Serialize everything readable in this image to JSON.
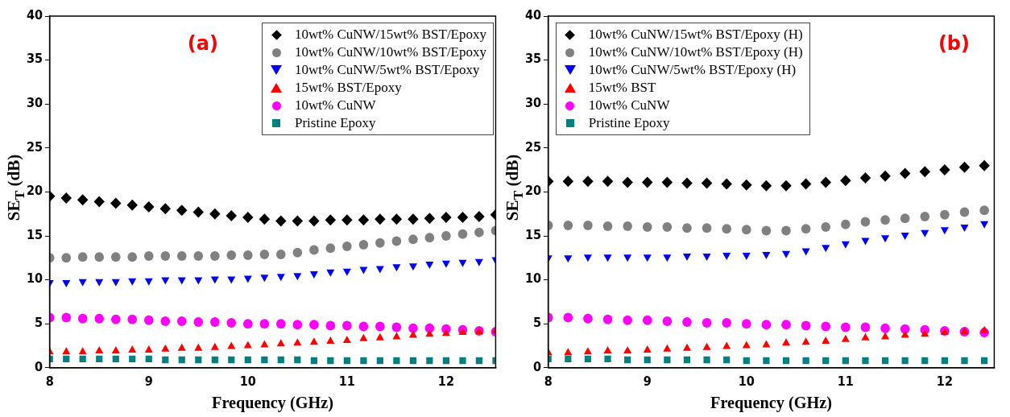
{
  "chart_data": [
    {
      "type": "scatter",
      "xlabel": "Frequency (GHz)",
      "ylabel": "SE$_{T}$ (dB)",
      "annotations": [
        "(a)"
      ],
      "legend": "top right",
      "grid": false,
      "xlim": [
        8,
        12.5
      ],
      "xticks": [
        8,
        9,
        10,
        11,
        12
      ],
      "ylim": [
        0,
        40
      ],
      "yticks": [
        0,
        5,
        10,
        15,
        20,
        25,
        30,
        35,
        40
      ],
      "x": [
        8,
        8.167,
        8.333,
        8.5,
        8.667,
        8.833,
        9,
        9.167,
        9.333,
        9.5,
        9.667,
        9.833,
        10,
        10.167,
        10.333,
        10.5,
        10.667,
        10.833,
        11,
        11.167,
        11.333,
        11.5,
        11.667,
        11.833,
        12,
        12.167,
        12.333,
        12.5
      ],
      "series": [
        {
          "name": "10wt% CuNW/15wt% BST/Epoxy",
          "color": "#000000",
          "marker": "diamond",
          "values": [
            19.5,
            19.3,
            19.1,
            18.9,
            18.7,
            18.5,
            18.3,
            18.1,
            17.9,
            17.7,
            17.5,
            17.3,
            17.1,
            16.9,
            16.7,
            16.7,
            16.7,
            16.8,
            16.8,
            16.8,
            16.9,
            16.9,
            16.9,
            17.0,
            17.1,
            17.1,
            17.2,
            17.4
          ]
        },
        {
          "name": "10wt% CuNW/10wt% BST/Epoxy",
          "color": "#808080",
          "marker": "circle",
          "values": [
            12.5,
            12.5,
            12.6,
            12.6,
            12.6,
            12.6,
            12.7,
            12.7,
            12.7,
            12.7,
            12.7,
            12.8,
            12.8,
            12.9,
            12.9,
            13.1,
            13.4,
            13.6,
            13.8,
            14.0,
            14.2,
            14.4,
            14.6,
            14.8,
            15.0,
            15.2,
            15.4,
            15.6
          ]
        },
        {
          "name": "10wt% CuNW/5wt% BST/Epoxy",
          "color": "#0000ff",
          "marker": "triangle-down",
          "values": [
            9.7,
            9.7,
            9.8,
            9.8,
            9.8,
            9.9,
            9.9,
            10.0,
            10.0,
            10.0,
            10.1,
            10.1,
            10.2,
            10.3,
            10.4,
            10.5,
            10.7,
            10.9,
            11.0,
            11.2,
            11.3,
            11.5,
            11.6,
            11.8,
            11.9,
            12.0,
            12.1,
            12.3
          ]
        },
        {
          "name": "15wt% BST/Epoxy",
          "color": "#ff0000",
          "marker": "triangle",
          "values": [
            1.8,
            1.8,
            1.8,
            1.9,
            1.9,
            2.0,
            2.0,
            2.1,
            2.2,
            2.2,
            2.3,
            2.4,
            2.5,
            2.6,
            2.7,
            2.8,
            2.9,
            3.0,
            3.1,
            3.3,
            3.4,
            3.5,
            3.7,
            3.8,
            3.9,
            4.0,
            4.1,
            4.2
          ]
        },
        {
          "name": "10wt% CuNW",
          "color": "#ff00ff",
          "marker": "circle",
          "values": [
            5.7,
            5.7,
            5.6,
            5.6,
            5.5,
            5.5,
            5.4,
            5.3,
            5.3,
            5.2,
            5.2,
            5.1,
            5.0,
            5.0,
            5.0,
            4.9,
            4.9,
            4.8,
            4.8,
            4.7,
            4.7,
            4.6,
            4.5,
            4.5,
            4.4,
            4.3,
            4.2,
            4.1
          ]
        },
        {
          "name": "Pristine Epoxy",
          "color": "#008080",
          "marker": "square",
          "values": [
            1.0,
            1.0,
            1.0,
            1.0,
            1.0,
            1.0,
            1.0,
            0.9,
            0.9,
            0.9,
            0.9,
            0.9,
            0.9,
            0.9,
            0.9,
            0.9,
            0.8,
            0.8,
            0.8,
            0.8,
            0.8,
            0.8,
            0.8,
            0.8,
            0.8,
            0.8,
            0.8,
            0.8
          ]
        }
      ]
    },
    {
      "type": "scatter",
      "xlabel": "Frequency (GHz)",
      "ylabel": "SE$_{T}$ (dB)",
      "annotations": [
        "(b)"
      ],
      "legend": "top left",
      "grid": false,
      "xlim": [
        8,
        12.5
      ],
      "xticks": [
        8,
        9,
        10,
        11,
        12
      ],
      "ylim": [
        0,
        40
      ],
      "yticks": [
        0,
        5,
        10,
        15,
        20,
        25,
        30,
        35,
        40
      ],
      "x": [
        8.0,
        8.2,
        8.4,
        8.6,
        8.8,
        9.0,
        9.2,
        9.4,
        9.6,
        9.8,
        10.0,
        10.2,
        10.4,
        10.6,
        10.8,
        11.0,
        11.2,
        11.4,
        11.6,
        11.8,
        12.0,
        12.2,
        12.4
      ],
      "series": [
        {
          "name": "10wt% CuNW/15wt% BST/Epoxy (H)",
          "color": "#000000",
          "marker": "diamond",
          "values": [
            21.2,
            21.2,
            21.2,
            21.2,
            21.1,
            21.1,
            21.1,
            21.0,
            21.0,
            20.9,
            20.8,
            20.7,
            20.7,
            20.9,
            21.1,
            21.3,
            21.6,
            21.8,
            22.1,
            22.3,
            22.5,
            22.8,
            23.0
          ]
        },
        {
          "name": "10wt% CuNW/10wt% BST/Epoxy (H)",
          "color": "#808080",
          "marker": "circle",
          "values": [
            16.2,
            16.2,
            16.2,
            16.1,
            16.1,
            16.0,
            16.0,
            15.9,
            15.9,
            15.8,
            15.7,
            15.6,
            15.6,
            15.8,
            16.0,
            16.3,
            16.6,
            16.8,
            17.0,
            17.2,
            17.4,
            17.7,
            17.9
          ]
        },
        {
          "name": "10wt% CuNW/5wt% BST/Epoxy (H)",
          "color": "#0000ff",
          "marker": "triangle-down",
          "values": [
            12.5,
            12.5,
            12.6,
            12.6,
            12.6,
            12.6,
            12.6,
            12.7,
            12.7,
            12.8,
            12.8,
            12.9,
            13.0,
            13.3,
            13.7,
            14.1,
            14.5,
            14.8,
            15.1,
            15.4,
            15.7,
            16.0,
            16.4
          ]
        },
        {
          "name": "15wt% BST",
          "color": "#ff0000",
          "marker": "triangle",
          "values": [
            1.7,
            1.7,
            1.8,
            1.9,
            1.9,
            2.0,
            2.1,
            2.2,
            2.3,
            2.4,
            2.5,
            2.6,
            2.8,
            2.9,
            3.0,
            3.2,
            3.4,
            3.5,
            3.7,
            3.8,
            4.0,
            4.1,
            4.2
          ]
        },
        {
          "name": "10wt% CuNW",
          "color": "#ff00ff",
          "marker": "circle",
          "values": [
            5.7,
            5.7,
            5.6,
            5.5,
            5.4,
            5.4,
            5.3,
            5.2,
            5.1,
            5.1,
            5.0,
            4.9,
            4.9,
            4.8,
            4.7,
            4.6,
            4.6,
            4.5,
            4.4,
            4.3,
            4.2,
            4.1,
            4.0
          ]
        },
        {
          "name": "Pristine Epoxy",
          "color": "#008080",
          "marker": "square",
          "values": [
            1.0,
            1.0,
            1.0,
            1.0,
            0.9,
            0.9,
            0.9,
            0.9,
            0.9,
            0.9,
            0.8,
            0.8,
            0.8,
            0.8,
            0.8,
            0.8,
            0.8,
            0.8,
            0.8,
            0.8,
            0.8,
            0.8,
            0.8
          ]
        }
      ]
    }
  ]
}
